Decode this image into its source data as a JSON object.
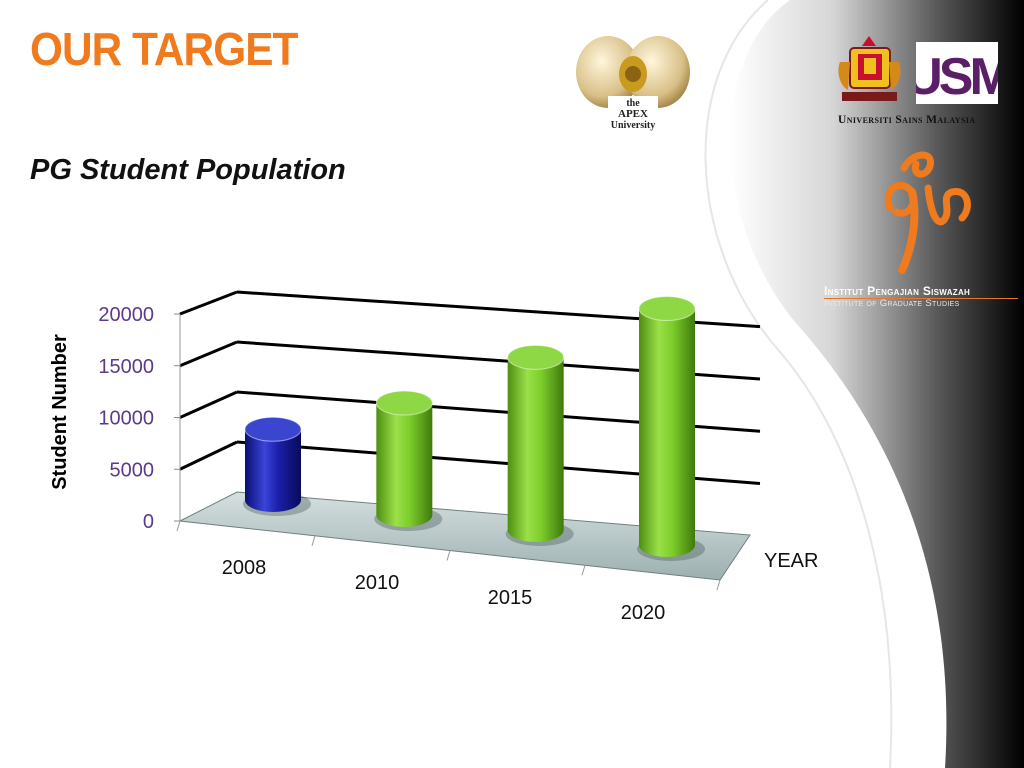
{
  "slide": {
    "title": "OUR TARGET",
    "subtitle": "PG Student Population"
  },
  "logos": {
    "apex": {
      "lines": [
        "the",
        "APEX",
        "University"
      ]
    },
    "usm": {
      "wordmark": "USM",
      "caption": "Universiti Sains Malaysia"
    },
    "ips": {
      "line1": "Institut Pengajian Siswazah",
      "line2": "Institute of Graduate Studies"
    }
  },
  "colors": {
    "title": "#f07a1e",
    "tick_text": "#5b3a8c",
    "highlight_bar": "#1a1fa8",
    "bar": "#7ccd2a",
    "floor": "#b9c7c7"
  },
  "chart_data": {
    "type": "bar",
    "style": "3d-cylinder",
    "categories": [
      "2008",
      "2010",
      "2015",
      "2020"
    ],
    "values": [
      6500,
      10000,
      15000,
      20000
    ],
    "highlight_index": 0,
    "xlabel": "YEAR",
    "ylabel": "Student Number",
    "ylim": [
      0,
      20000
    ],
    "yticks": [
      "0",
      "5000",
      "10000",
      "15000",
      "20000"
    ],
    "grid": true,
    "legend": "none"
  }
}
